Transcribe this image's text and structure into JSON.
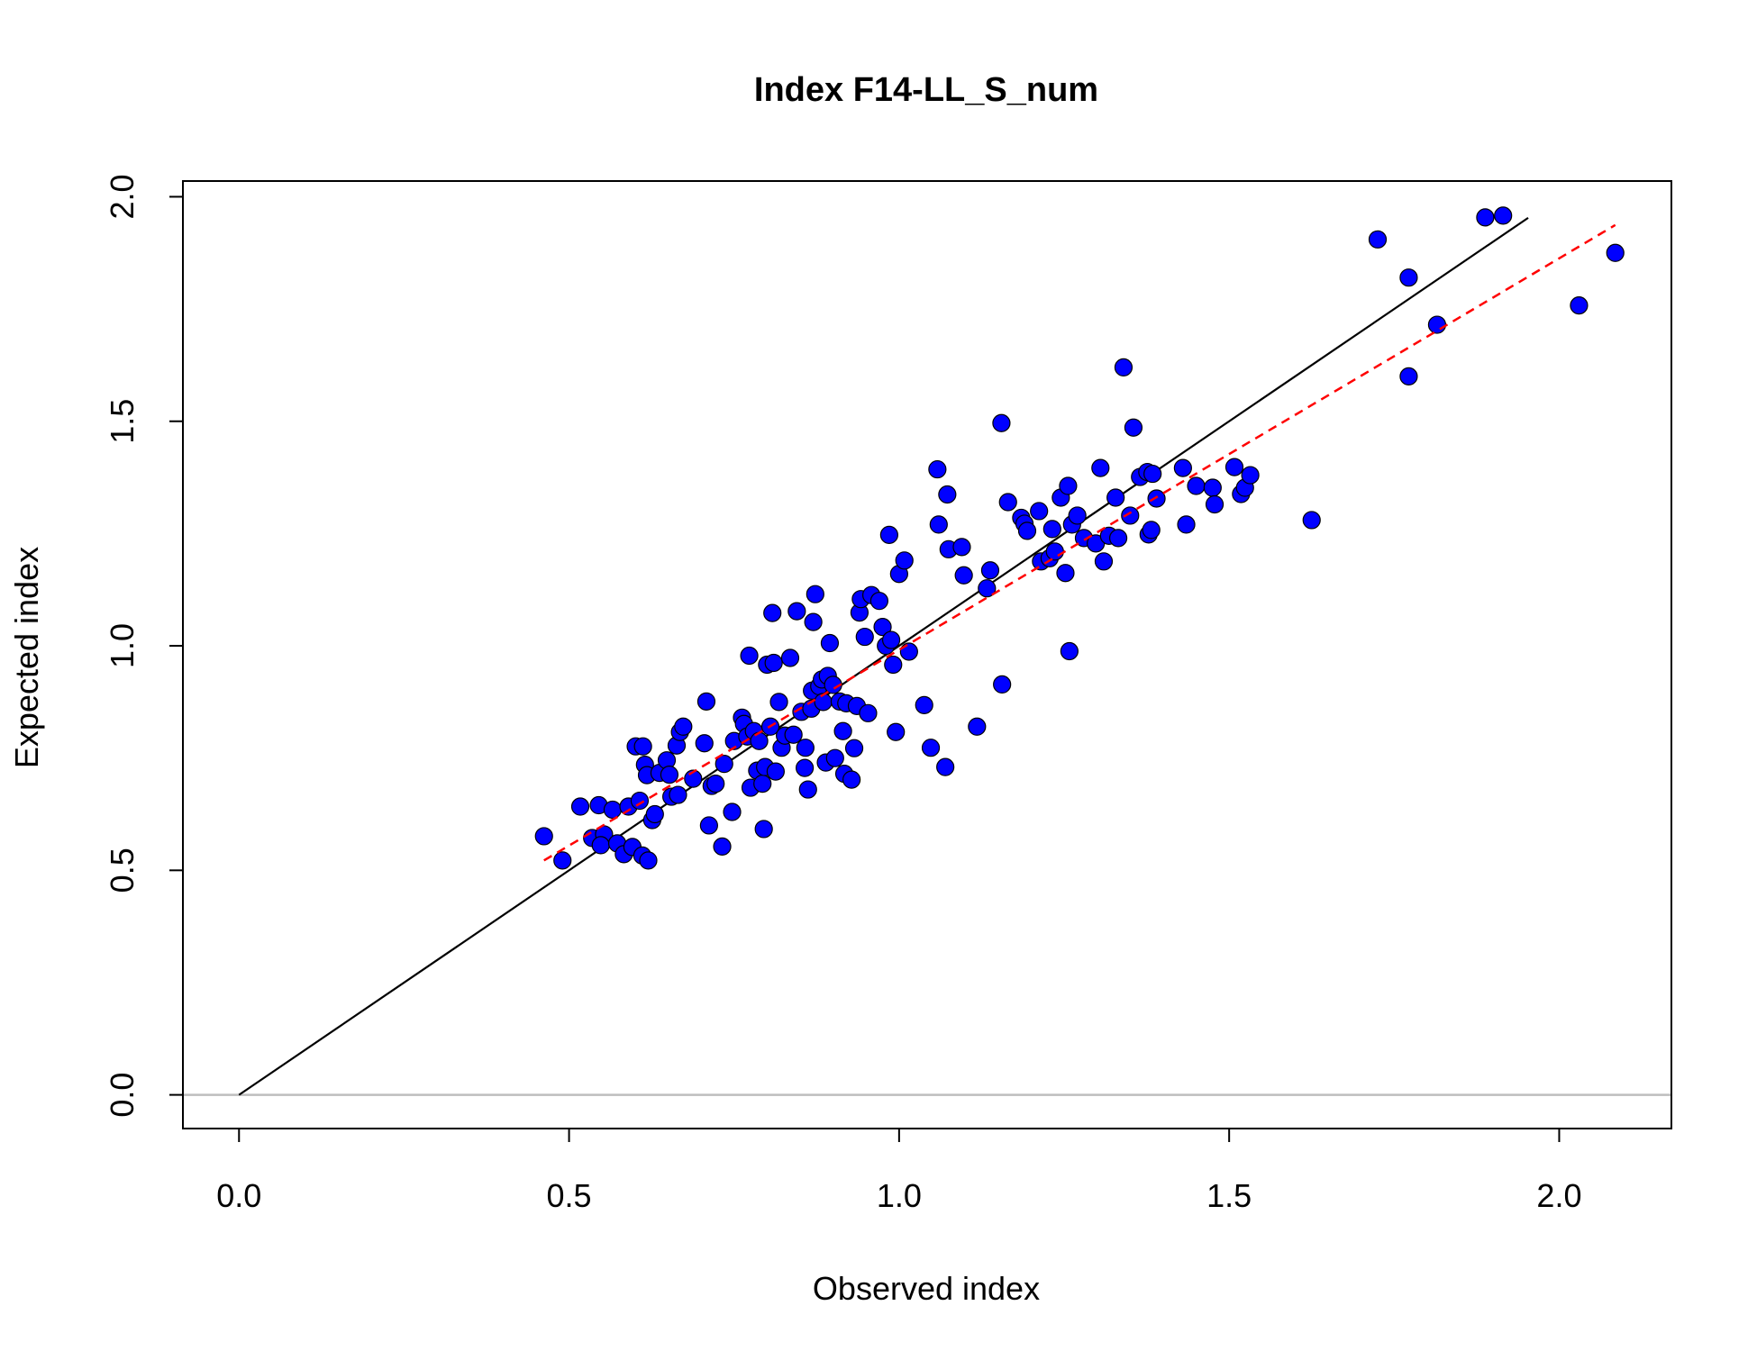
{
  "chart_data": {
    "type": "scatter",
    "title": "Index F14-LL_S_num",
    "xlabel": "Observed index",
    "ylabel": "Expected index",
    "xlim": [
      -0.085,
      2.17
    ],
    "ylim": [
      -0.075,
      2.035
    ],
    "x_ticks": [
      0.0,
      0.5,
      1.0,
      1.5,
      2.0
    ],
    "x_tick_labels": [
      "0.0",
      "0.5",
      "1.0",
      "1.5",
      "2.0"
    ],
    "y_ticks": [
      0.0,
      0.5,
      1.0,
      1.5,
      2.0
    ],
    "y_tick_labels": [
      "0.0",
      "0.5",
      "1.0",
      "1.5",
      "2.0"
    ],
    "grid": false,
    "colors": {
      "points": "#0000ff",
      "point_edge": "#000000",
      "identity_line": "#000000",
      "fit_line": "#ff0000",
      "zero_line": "#bebebe"
    },
    "reference_lines": {
      "identity": {
        "x": [
          0.0,
          1.953
        ],
        "y": [
          0.0,
          1.953
        ]
      },
      "fit": {
        "x": [
          0.462,
          2.085
        ],
        "y": [
          0.522,
          1.937
        ],
        "style": "dashed"
      },
      "zero": {
        "y": 0.0
      }
    },
    "points": [
      [
        0.462,
        0.576
      ],
      [
        0.49,
        0.522
      ],
      [
        0.517,
        0.642
      ],
      [
        0.535,
        0.572
      ],
      [
        0.545,
        0.645
      ],
      [
        0.553,
        0.58
      ],
      [
        0.548,
        0.556
      ],
      [
        0.566,
        0.635
      ],
      [
        0.573,
        0.56
      ],
      [
        0.583,
        0.536
      ],
      [
        0.59,
        0.642
      ],
      [
        0.596,
        0.552
      ],
      [
        0.601,
        0.776
      ],
      [
        0.607,
        0.655
      ],
      [
        0.611,
        0.533
      ],
      [
        0.612,
        0.776
      ],
      [
        0.615,
        0.735
      ],
      [
        0.618,
        0.712
      ],
      [
        0.62,
        0.522
      ],
      [
        0.626,
        0.612
      ],
      [
        0.63,
        0.625
      ],
      [
        0.637,
        0.717
      ],
      [
        0.648,
        0.745
      ],
      [
        0.652,
        0.713
      ],
      [
        0.655,
        0.664
      ],
      [
        0.665,
        0.668
      ],
      [
        0.663,
        0.778
      ],
      [
        0.668,
        0.808
      ],
      [
        0.673,
        0.82
      ],
      [
        0.688,
        0.704
      ],
      [
        0.705,
        0.783
      ],
      [
        0.708,
        0.876
      ],
      [
        0.712,
        0.6
      ],
      [
        0.716,
        0.688
      ],
      [
        0.722,
        0.693
      ],
      [
        0.732,
        0.553
      ],
      [
        0.735,
        0.737
      ],
      [
        0.747,
        0.63
      ],
      [
        0.75,
        0.788
      ],
      [
        0.762,
        0.84
      ],
      [
        0.765,
        0.826
      ],
      [
        0.77,
        0.798
      ],
      [
        0.775,
        0.684
      ],
      [
        0.773,
        0.978
      ],
      [
        0.78,
        0.81
      ],
      [
        0.785,
        0.722
      ],
      [
        0.788,
        0.788
      ],
      [
        0.793,
        0.693
      ],
      [
        0.797,
        0.73
      ],
      [
        0.795,
        0.592
      ],
      [
        0.8,
        0.958
      ],
      [
        0.805,
        0.82
      ],
      [
        0.808,
        1.073
      ],
      [
        0.81,
        0.962
      ],
      [
        0.813,
        0.72
      ],
      [
        0.818,
        0.875
      ],
      [
        0.822,
        0.773
      ],
      [
        0.827,
        0.8
      ],
      [
        0.835,
        0.973
      ],
      [
        0.84,
        0.802
      ],
      [
        0.845,
        1.077
      ],
      [
        0.852,
        0.853
      ],
      [
        0.858,
        0.773
      ],
      [
        0.857,
        0.728
      ],
      [
        0.862,
        0.68
      ],
      [
        0.867,
        0.86
      ],
      [
        0.868,
        0.9
      ],
      [
        0.87,
        1.053
      ],
      [
        0.873,
        1.115
      ],
      [
        0.879,
        0.91
      ],
      [
        0.883,
        0.925
      ],
      [
        0.885,
        0.875
      ],
      [
        0.889,
        0.74
      ],
      [
        0.892,
        0.933
      ],
      [
        0.895,
        1.006
      ],
      [
        0.9,
        0.913
      ],
      [
        0.903,
        0.75
      ],
      [
        0.91,
        0.876
      ],
      [
        0.915,
        0.81
      ],
      [
        0.917,
        0.715
      ],
      [
        0.92,
        0.872
      ],
      [
        0.928,
        0.702
      ],
      [
        0.932,
        0.772
      ],
      [
        0.936,
        0.866
      ],
      [
        0.94,
        1.074
      ],
      [
        0.942,
        1.104
      ],
      [
        0.948,
        1.02
      ],
      [
        0.953,
        0.85
      ],
      [
        0.958,
        1.113
      ],
      [
        0.97,
        1.1
      ],
      [
        0.975,
        1.042
      ],
      [
        0.98,
        1.0
      ],
      [
        0.985,
        1.247
      ],
      [
        0.988,
        1.013
      ],
      [
        0.991,
        0.958
      ],
      [
        0.995,
        0.808
      ],
      [
        1.0,
        1.16
      ],
      [
        1.008,
        1.19
      ],
      [
        1.015,
        0.987
      ],
      [
        1.038,
        0.868
      ],
      [
        1.048,
        0.773
      ],
      [
        1.058,
        1.393
      ],
      [
        1.06,
        1.27
      ],
      [
        1.07,
        0.73
      ],
      [
        1.073,
        1.337
      ],
      [
        1.075,
        1.215
      ],
      [
        1.095,
        1.22
      ],
      [
        1.098,
        1.157
      ],
      [
        1.118,
        0.82
      ],
      [
        1.133,
        1.128
      ],
      [
        1.138,
        1.168
      ],
      [
        1.155,
        1.496
      ],
      [
        1.156,
        0.914
      ],
      [
        1.165,
        1.32
      ],
      [
        1.185,
        1.285
      ],
      [
        1.19,
        1.272
      ],
      [
        1.194,
        1.256
      ],
      [
        1.212,
        1.3
      ],
      [
        1.215,
        1.188
      ],
      [
        1.228,
        1.195
      ],
      [
        1.232,
        1.26
      ],
      [
        1.236,
        1.21
      ],
      [
        1.245,
        1.33
      ],
      [
        1.252,
        1.162
      ],
      [
        1.256,
        1.356
      ],
      [
        1.258,
        0.988
      ],
      [
        1.262,
        1.27
      ],
      [
        1.27,
        1.29
      ],
      [
        1.28,
        1.24
      ],
      [
        1.298,
        1.228
      ],
      [
        1.305,
        1.396
      ],
      [
        1.31,
        1.188
      ],
      [
        1.318,
        1.245
      ],
      [
        1.328,
        1.33
      ],
      [
        1.332,
        1.24
      ],
      [
        1.34,
        1.62
      ],
      [
        1.35,
        1.29
      ],
      [
        1.355,
        1.486
      ],
      [
        1.365,
        1.376
      ],
      [
        1.376,
        1.387
      ],
      [
        1.378,
        1.248
      ],
      [
        1.382,
        1.258
      ],
      [
        1.384,
        1.383
      ],
      [
        1.39,
        1.328
      ],
      [
        1.43,
        1.396
      ],
      [
        1.435,
        1.27
      ],
      [
        1.45,
        1.356
      ],
      [
        1.475,
        1.352
      ],
      [
        1.478,
        1.315
      ],
      [
        1.508,
        1.398
      ],
      [
        1.518,
        1.338
      ],
      [
        1.524,
        1.352
      ],
      [
        1.532,
        1.38
      ],
      [
        1.625,
        1.28
      ],
      [
        1.725,
        1.905
      ],
      [
        1.772,
        1.82
      ],
      [
        1.772,
        1.6
      ],
      [
        1.815,
        1.715
      ],
      [
        1.888,
        1.954
      ],
      [
        1.915,
        1.958
      ],
      [
        2.03,
        1.758
      ],
      [
        2.085,
        1.875
      ]
    ]
  }
}
